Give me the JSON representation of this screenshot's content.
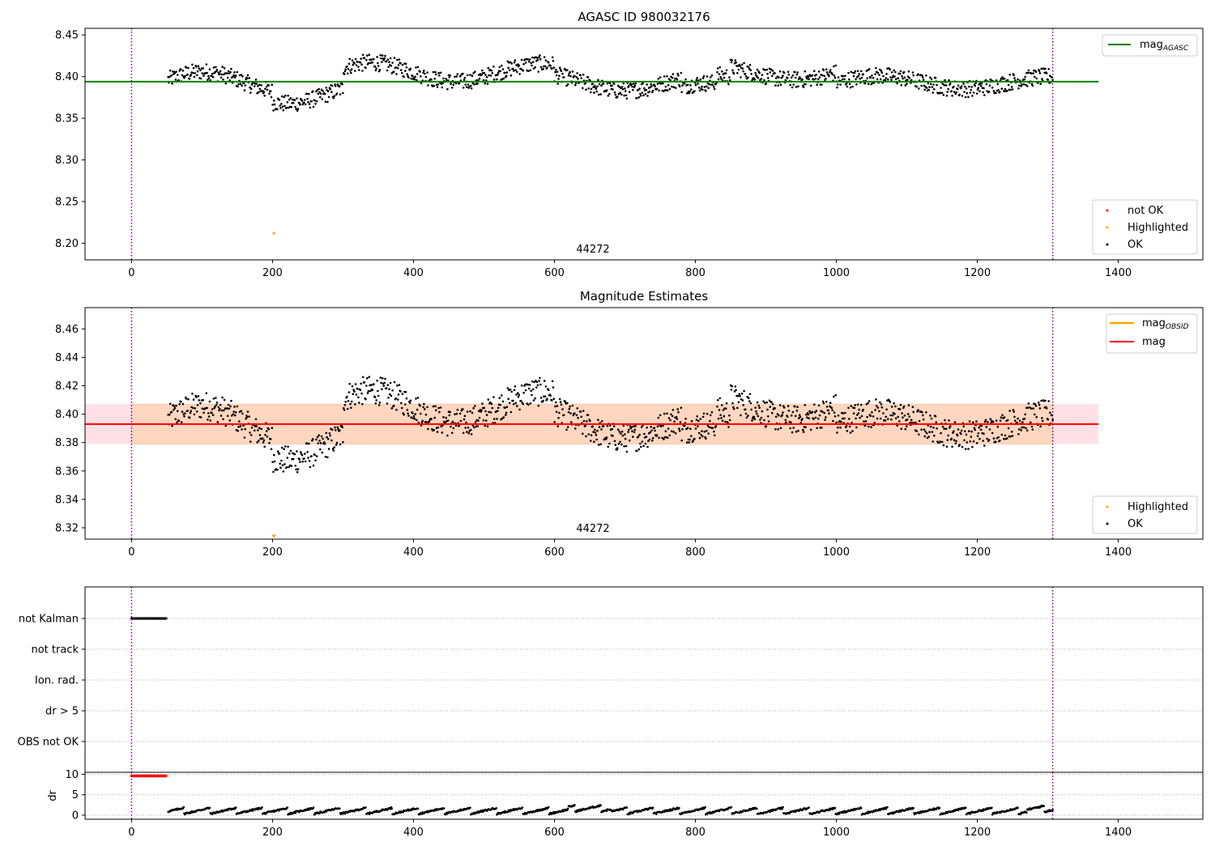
{
  "colors": {
    "ok": "#000000",
    "not_ok": "#ff0000",
    "highlighted": "#ffa500",
    "mag_agasc_line": "#008000",
    "mag_line": "#ff0000",
    "mag_obsid_line": "#ffa500",
    "obs_boundary": "#800080",
    "band_inner": "#ffd6bf",
    "band_outer": "#ffe0e6",
    "grid": "#b0b0b0"
  },
  "chart_data": [
    {
      "type": "scatter",
      "title": "AGASC ID 980032176",
      "annotation": "44272",
      "xlim": [
        -66,
        1520
      ],
      "ylim": [
        8.18,
        8.458
      ],
      "xticks": [
        0,
        200,
        400,
        600,
        800,
        1000,
        1200,
        1400
      ],
      "yticks": [
        8.2,
        8.25,
        8.3,
        8.35,
        8.4,
        8.45
      ],
      "ytick_labels": [
        "8.20",
        "8.25",
        "8.30",
        "8.35",
        "8.40",
        "8.45"
      ],
      "obs_boundaries_x": [
        0,
        1307
      ],
      "mag_agasc": 8.394,
      "mag_line_xrange": [
        -66,
        1372
      ],
      "highlighted_points": [
        {
          "x": 202,
          "y": 8.212
        }
      ],
      "ok_points_description_segments": [
        {
          "x_start": 50,
          "x_end": 70,
          "level": 8.405
        },
        {
          "x_start": 70,
          "x_end": 300,
          "level": 8.38
        },
        {
          "x_start": 300,
          "x_end": 600,
          "level": 8.405
        },
        {
          "x_start": 600,
          "x_end": 850,
          "level": 8.385
        },
        {
          "x_start": 850,
          "x_end": 1000,
          "level": 8.41
        },
        {
          "x_start": 1000,
          "x_end": 1300,
          "level": 8.392
        }
      ],
      "legend_upper": [
        {
          "label": "mag",
          "subscript": "AGASC"
        }
      ],
      "legend_lower": [
        {
          "label": "not OK",
          "marker": "not_ok"
        },
        {
          "label": "Highlighted",
          "marker": "highlighted"
        },
        {
          "label": "OK",
          "marker": "ok"
        }
      ]
    },
    {
      "type": "scatter",
      "title": "Magnitude Estimates",
      "annotation": "44272",
      "xlim": [
        -66,
        1520
      ],
      "ylim": [
        8.312,
        8.475
      ],
      "xticks": [
        0,
        200,
        400,
        600,
        800,
        1000,
        1200,
        1400
      ],
      "yticks": [
        8.32,
        8.34,
        8.36,
        8.38,
        8.4,
        8.42,
        8.44,
        8.46
      ],
      "ytick_labels": [
        "8.32",
        "8.34",
        "8.36",
        "8.38",
        "8.40",
        "8.42",
        "8.44",
        "8.46"
      ],
      "obs_boundaries_x": [
        0,
        1307
      ],
      "mag": 8.393,
      "mag_band": [
        8.379,
        8.407
      ],
      "mag_line_xrange": [
        -66,
        1372
      ],
      "highlighted_points": [
        {
          "x": 202,
          "y": 8.314
        }
      ],
      "legend_upper": [
        {
          "label": "mag",
          "subscript": "OBSID",
          "marker": "mag_obsid_line"
        },
        {
          "label": "mag",
          "marker": "mag_line"
        }
      ],
      "legend_lower": [
        {
          "label": "Highlighted",
          "marker": "highlighted"
        },
        {
          "label": "OK",
          "marker": "ok"
        }
      ]
    },
    {
      "type": "scatter",
      "title": "",
      "xlim": [
        -66,
        1520
      ],
      "xticks": [
        0,
        200,
        400,
        600,
        800,
        1000,
        1200,
        1400
      ],
      "categories": [
        "not Kalman",
        "not track",
        "Ion. rad.",
        "dr > 5",
        "OBS not OK"
      ],
      "flagged": {
        "not Kalman": {
          "x_start": 0,
          "x_end": 50
        }
      },
      "obs_boundaries_x": [
        0,
        1307
      ],
      "grid": true
    },
    {
      "type": "scatter",
      "title": "",
      "ylabel": "dr",
      "xlim": [
        -66,
        1520
      ],
      "ylim": [
        -1,
        10.5
      ],
      "xticks": [
        0,
        200,
        400,
        600,
        800,
        1000,
        1200,
        1400
      ],
      "yticks": [
        0,
        5,
        10
      ],
      "ytick_labels": [
        "0",
        "5",
        "10"
      ],
      "obs_boundaries_x": [
        0,
        1307
      ],
      "not_ok_points": {
        "x_start": 0,
        "x_end": 50,
        "y": 9.6
      },
      "ok_points_range": {
        "x_start": 50,
        "x_end": 1307,
        "y_min": 0,
        "y_max": 2.5
      }
    }
  ]
}
